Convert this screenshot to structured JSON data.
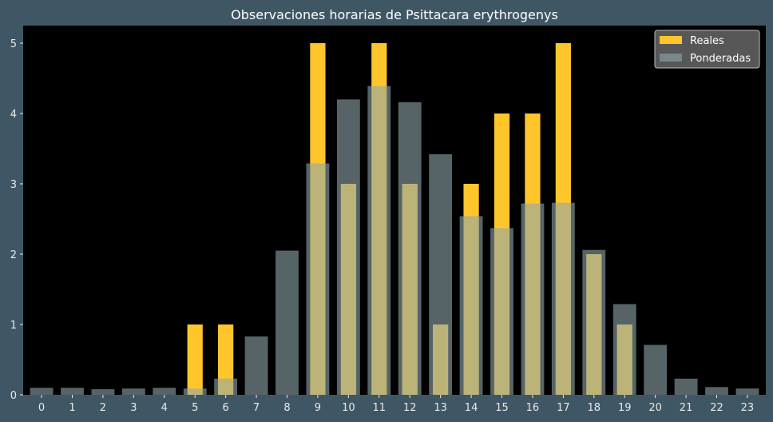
{
  "chart_data": {
    "type": "bar",
    "title": "Observaciones horarias de Psittacara erythrogenys",
    "xlabel": "",
    "ylabel": "",
    "categories": [
      "0",
      "1",
      "2",
      "3",
      "4",
      "5",
      "6",
      "7",
      "8",
      "9",
      "10",
      "11",
      "12",
      "13",
      "14",
      "15",
      "16",
      "17",
      "18",
      "19",
      "20",
      "21",
      "22",
      "23"
    ],
    "ylim": [
      0,
      5.25
    ],
    "yticks": [
      "0",
      "1",
      "2",
      "3",
      "4",
      "5"
    ],
    "grid": false,
    "legend_position": "top-right",
    "series": [
      {
        "name": "Reales",
        "color": "#ffc62b",
        "values": [
          0,
          0,
          0,
          0,
          0,
          1,
          1,
          0,
          0,
          5,
          3,
          5,
          3,
          1,
          3,
          4,
          4,
          5,
          2,
          1,
          0,
          0,
          0,
          0
        ]
      },
      {
        "name": "Ponderadas",
        "color": "#8fa6ad",
        "opacity": 0.6,
        "values": [
          0.1,
          0.1,
          0.08,
          0.09,
          0.1,
          0.09,
          0.23,
          0.83,
          2.05,
          3.29,
          4.2,
          4.39,
          4.16,
          3.42,
          2.54,
          2.37,
          2.72,
          2.73,
          2.06,
          1.29,
          0.71,
          0.23,
          0.11,
          0.09
        ]
      }
    ]
  }
}
